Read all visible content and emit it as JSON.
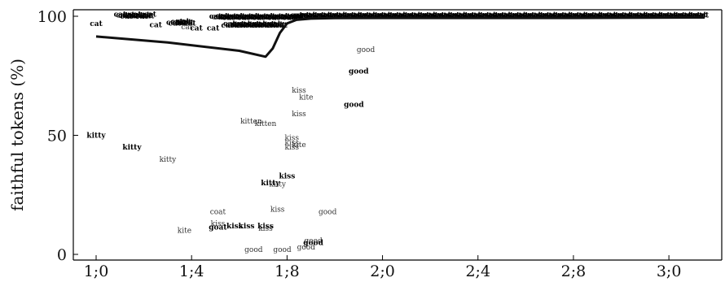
{
  "chart_data": {
    "type": "scatter",
    "ylabel": "faithful tokens (%)",
    "xlabel": "",
    "title": "",
    "xlim": [
      12,
      37.6
    ],
    "ylim": [
      0,
      100
    ],
    "grid": false,
    "x_ticks": [
      {
        "value": 12,
        "label": "1;0"
      },
      {
        "value": 16,
        "label": "1;4"
      },
      {
        "value": 20,
        "label": "1;8"
      },
      {
        "value": 24,
        "label": "2;0"
      },
      {
        "value": 28,
        "label": "2;4"
      },
      {
        "value": 32,
        "label": "2;8"
      },
      {
        "value": 36,
        "label": "3;0"
      }
    ],
    "y_ticks": [
      {
        "value": 0,
        "label": "0"
      },
      {
        "value": 50,
        "label": "50"
      },
      {
        "value": 100,
        "label": "100"
      }
    ],
    "trend_line": {
      "x": [
        12,
        15,
        18,
        19.1,
        19.4,
        19.7,
        20,
        20.4,
        21,
        22,
        24,
        28,
        32,
        37.5
      ],
      "y": [
        91.5,
        89,
        85.5,
        83,
        86.5,
        93,
        97,
        98.5,
        99,
        99.2,
        99.3,
        99.3,
        99.3,
        99.5
      ]
    },
    "tokens": [
      {
        "word": "kitty",
        "x": 12,
        "y": 50,
        "bold": true
      },
      {
        "word": "kitty",
        "x": 13.5,
        "y": 45,
        "bold": true
      },
      {
        "word": "kitty",
        "x": 15,
        "y": 40,
        "bold": false
      },
      {
        "word": "kite",
        "x": 15.7,
        "y": 10,
        "bold": false
      },
      {
        "word": "coat",
        "x": 17.1,
        "y": 18,
        "bold": false
      },
      {
        "word": "kiss",
        "x": 17.1,
        "y": 13,
        "bold": false
      },
      {
        "word": "goat",
        "x": 17.1,
        "y": 11.5,
        "bold": true
      },
      {
        "word": "kiss",
        "x": 17.8,
        "y": 12,
        "bold": true
      },
      {
        "word": "kiss",
        "x": 18.3,
        "y": 12,
        "bold": true
      },
      {
        "word": "kiss",
        "x": 19.1,
        "y": 12,
        "bold": true
      },
      {
        "word": "kiss",
        "x": 19.1,
        "y": 11,
        "bold": false
      },
      {
        "word": "kitten",
        "x": 18.5,
        "y": 56,
        "bold": false
      },
      {
        "word": "kitten",
        "x": 19.1,
        "y": 55,
        "bold": false
      },
      {
        "word": "kitty",
        "x": 19.3,
        "y": 30,
        "bold": true
      },
      {
        "word": "kitty",
        "x": 19.6,
        "y": 29.5,
        "bold": false
      },
      {
        "word": "kiss",
        "x": 20,
        "y": 33,
        "bold": true
      },
      {
        "word": "kiss",
        "x": 19.6,
        "y": 19,
        "bold": false
      },
      {
        "word": "kiss",
        "x": 20.5,
        "y": 69,
        "bold": false
      },
      {
        "word": "kite",
        "x": 20.8,
        "y": 66,
        "bold": false
      },
      {
        "word": "kiss",
        "x": 20.5,
        "y": 59,
        "bold": false
      },
      {
        "word": "kiss",
        "x": 20.2,
        "y": 49,
        "bold": false
      },
      {
        "word": "kiss",
        "x": 20.2,
        "y": 47,
        "bold": false
      },
      {
        "word": "kite",
        "x": 20.5,
        "y": 46,
        "bold": false
      },
      {
        "word": "kiss",
        "x": 20.2,
        "y": 45,
        "bold": false
      },
      {
        "word": "good",
        "x": 21.7,
        "y": 18,
        "bold": false
      },
      {
        "word": "good",
        "x": 18.6,
        "y": 2,
        "bold": false
      },
      {
        "word": "good",
        "x": 19.8,
        "y": 2,
        "bold": false
      },
      {
        "word": "good",
        "x": 20.8,
        "y": 3,
        "bold": false
      },
      {
        "word": "good",
        "x": 21.1,
        "y": 5,
        "bold": true
      },
      {
        "word": "good",
        "x": 21.1,
        "y": 5.8,
        "bold": false
      },
      {
        "word": "good",
        "x": 23.3,
        "y": 86,
        "bold": false
      },
      {
        "word": "good",
        "x": 23,
        "y": 77,
        "bold": true
      },
      {
        "word": "good",
        "x": 22.8,
        "y": 63,
        "bold": true
      },
      {
        "word": "cat",
        "x": 12,
        "y": 97,
        "bold": true
      },
      {
        "word": "cat",
        "x": 14.5,
        "y": 96.5,
        "bold": true
      },
      {
        "word": "cat",
        "x": 15.8,
        "y": 95.5,
        "bold": false
      },
      {
        "word": "cat",
        "x": 16.2,
        "y": 95,
        "bold": true
      },
      {
        "word": "cat",
        "x": 16.9,
        "y": 95,
        "bold": true
      }
    ],
    "top_cluster": [
      {
        "word": "cat",
        "x_start": 13,
        "x_end": 14.3,
        "y": 99.4
      },
      {
        "word": "cat",
        "x_start": 15.2,
        "x_end": 16,
        "y": 96.5
      },
      {
        "word": "cat",
        "x_start": 17,
        "x_end": 20.5,
        "y": 98.8
      },
      {
        "word": "cat",
        "x_start": 17.5,
        "x_end": 19.8,
        "y": 95.5
      },
      {
        "word": "cat",
        "x_start": 20.4,
        "x_end": 37.5,
        "y": 99.3
      }
    ]
  }
}
